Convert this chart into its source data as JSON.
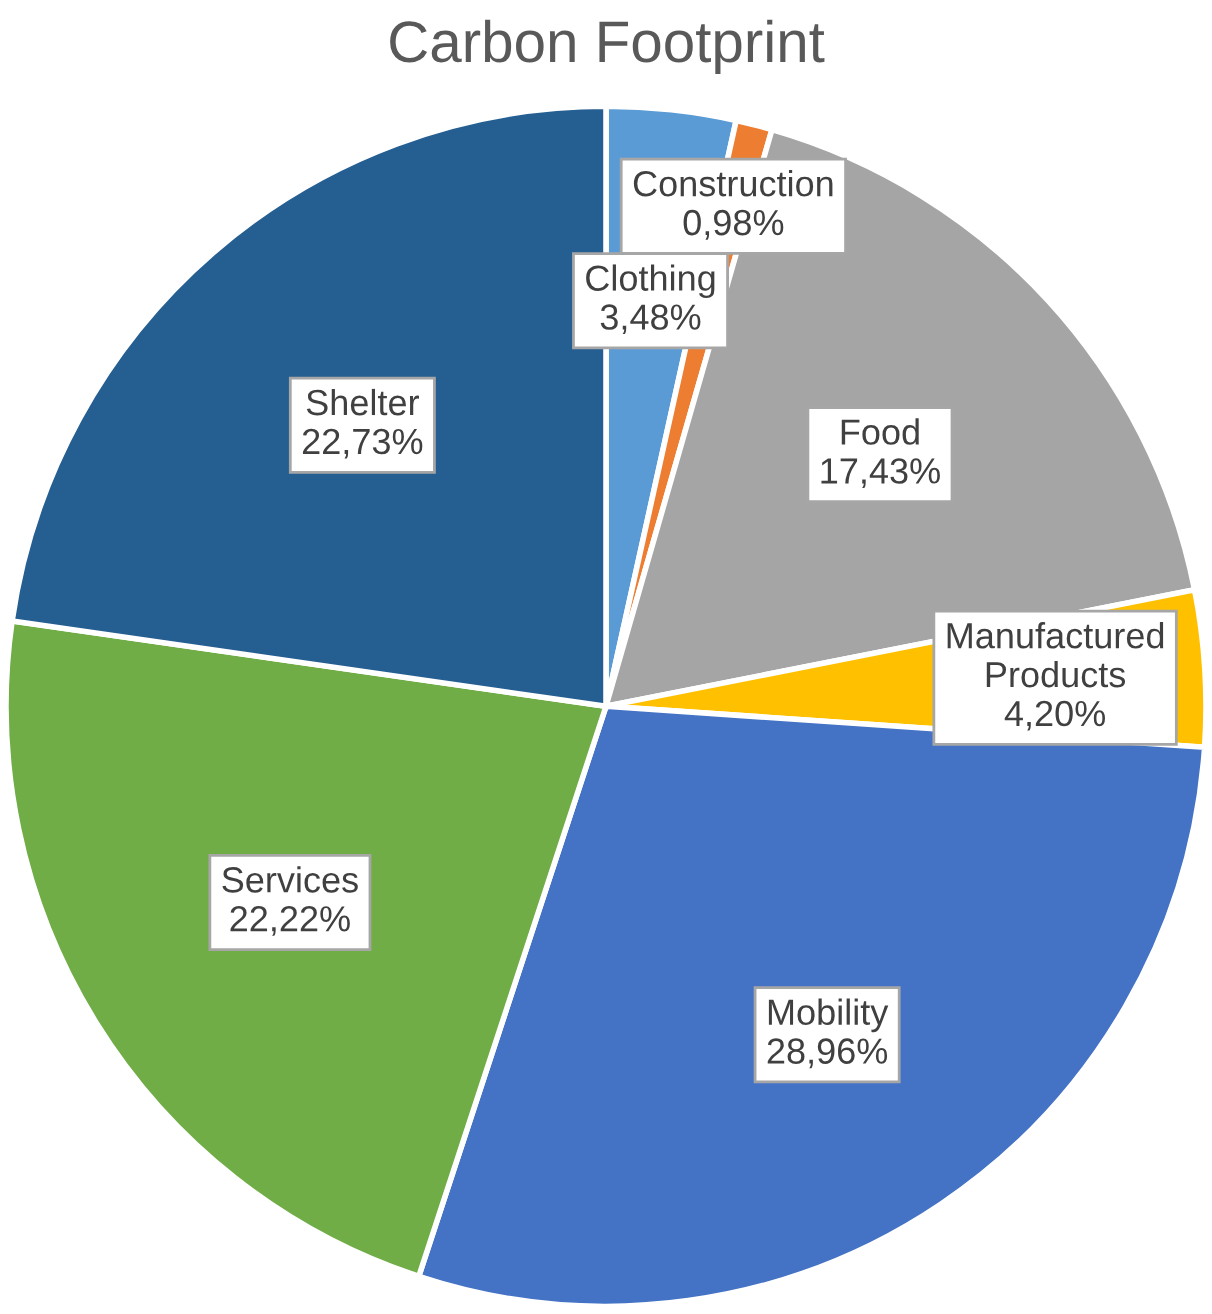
{
  "chart_data": {
    "type": "pie",
    "title": "Carbon Footprint",
    "categories": [
      "Clothing",
      "Construction",
      "Food",
      "Manufactured Products",
      "Mobility",
      "Services",
      "Shelter"
    ],
    "values": [
      3.48,
      0.98,
      17.43,
      4.2,
      28.96,
      22.22,
      22.73
    ],
    "colors": [
      "#5b9bd5",
      "#ed7d31",
      "#a5a5a5",
      "#ffc000",
      "#4472c4",
      "#70ad47",
      "#255e91"
    ],
    "value_labels": [
      "3,48%",
      "0,98%",
      "17,43%",
      "4,20%",
      "28,96%",
      "22,22%",
      "22,73%"
    ],
    "legend": false
  }
}
